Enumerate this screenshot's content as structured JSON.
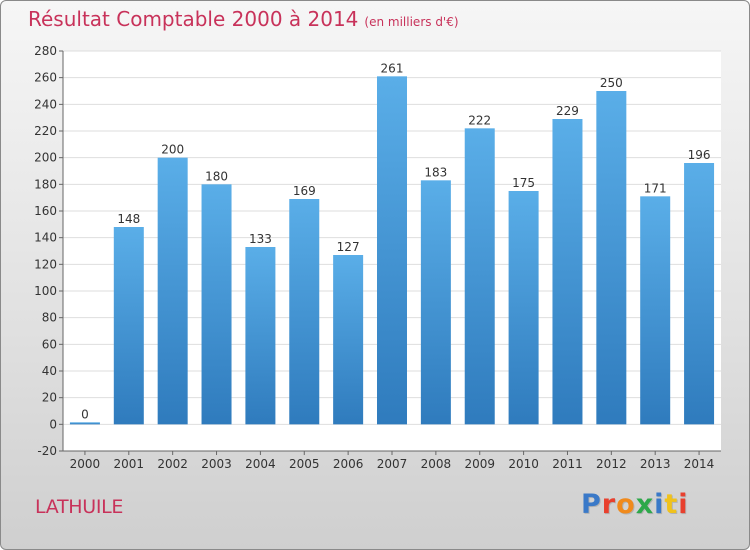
{
  "header": {
    "title": "Résultat Comptable 2000 à 2014",
    "subtitle": "(en milliers d'€)"
  },
  "footer": {
    "commune": "LATHUILE",
    "logo_text": "Proxiti",
    "logo_colors": [
      "#3a79c8",
      "#e8402e",
      "#f08a1c",
      "#2da84a",
      "#3a79c8",
      "#f0c21c",
      "#e8402e"
    ]
  },
  "chart_data": {
    "type": "bar",
    "title": "Résultat Comptable 2000 à 2014",
    "subtitle": "(en milliers d'€)",
    "xlabel": "",
    "ylabel": "",
    "categories": [
      "2000",
      "2001",
      "2002",
      "2003",
      "2004",
      "2005",
      "2006",
      "2007",
      "2008",
      "2009",
      "2010",
      "2011",
      "2012",
      "2013",
      "2014"
    ],
    "values": [
      0,
      148,
      200,
      180,
      133,
      169,
      127,
      261,
      183,
      222,
      175,
      229,
      250,
      171,
      196
    ],
    "data_labels": [
      "0",
      "148",
      "200",
      "180",
      "133",
      "169",
      "127",
      "261",
      "183",
      "222",
      "175",
      "229",
      "250",
      "171",
      "196"
    ],
    "ylim": [
      -20,
      280
    ],
    "yticks": [
      -20,
      0,
      20,
      40,
      60,
      80,
      100,
      120,
      140,
      160,
      180,
      200,
      220,
      240,
      260,
      280
    ],
    "grid": true,
    "legend": "none",
    "colors": {
      "bar_top": "#5aaee8",
      "bar_bottom": "#2f7bbd",
      "grid": "#dedede",
      "plot_bg": "#ffffff",
      "label": "#333333"
    }
  }
}
